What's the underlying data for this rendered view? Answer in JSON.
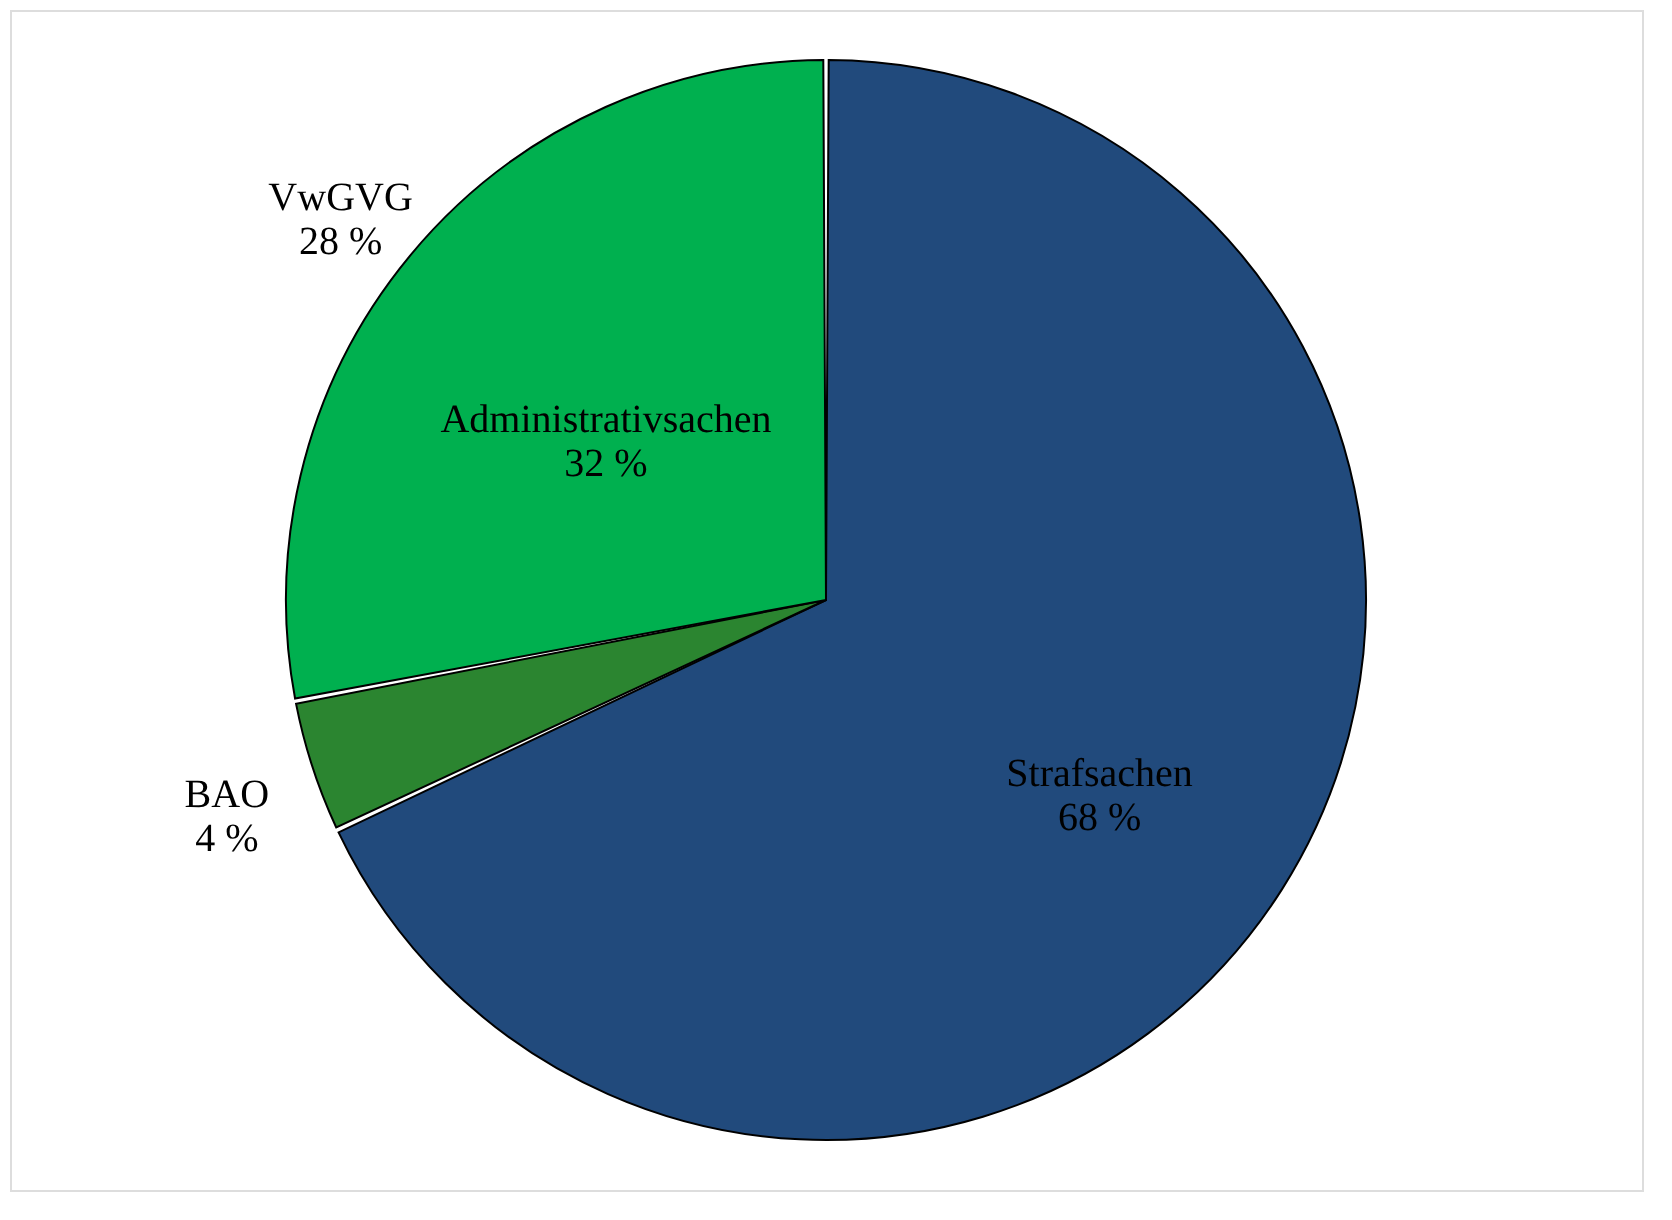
{
  "chart_data": {
    "type": "pie",
    "categories": [
      "Strafsachen",
      "BAO",
      "VwGVG"
    ],
    "values": [
      68,
      4,
      28
    ],
    "colors": [
      "#214a7c",
      "#2b8530",
      "#00b04f"
    ],
    "value_labels": [
      "68 %",
      "4 %",
      "28 %"
    ],
    "annotations": [
      "Administrativsachen\n32 %"
    ],
    "legend": false
  }
}
